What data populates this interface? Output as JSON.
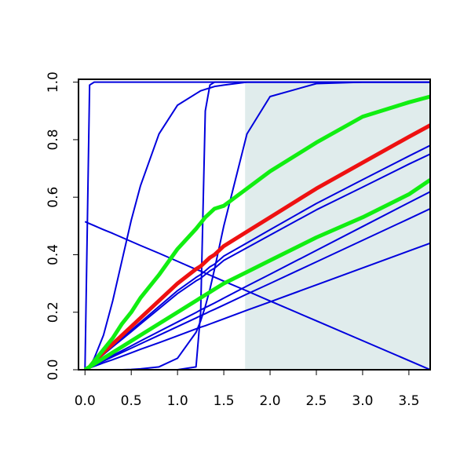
{
  "chart_data": {
    "type": "line",
    "x": [
      0,
      0.05,
      0.1,
      0.2,
      0.3,
      0.4,
      0.5,
      0.6,
      0.8,
      1,
      1.2,
      1.25,
      1.3,
      1.35,
      1.4,
      1.5,
      1.75,
      2,
      2.5,
      3,
      3.5,
      3.73
    ],
    "xlim": [
      -0.07,
      3.73
    ],
    "ylim": [
      0,
      1.01
    ],
    "xticks": [
      {
        "value": 0,
        "label": "0.0"
      },
      {
        "value": 0.5,
        "label": "0.5"
      },
      {
        "value": 1,
        "label": "1.0"
      },
      {
        "value": 1.5,
        "label": "1.5"
      },
      {
        "value": 2,
        "label": "2.0"
      },
      {
        "value": 2.5,
        "label": "2.5"
      },
      {
        "value": 3,
        "label": "3.0"
      },
      {
        "value": 3.5,
        "label": "3.5"
      }
    ],
    "yticks": [
      {
        "value": 0,
        "label": "0.0"
      },
      {
        "value": 0.2,
        "label": "0.2"
      },
      {
        "value": 0.4,
        "label": "0.4"
      },
      {
        "value": 0.6,
        "label": "0.6"
      },
      {
        "value": 0.8,
        "label": "0.8"
      },
      {
        "value": 1,
        "label": "1.0"
      }
    ],
    "shade": {
      "xmin": 1.73,
      "ymin": 0,
      "ymax": 1,
      "color": "#e0ecec"
    },
    "series": [
      {
        "color": "#0000dd",
        "width": 2,
        "values": [
          0,
          0.99,
          1,
          1,
          1,
          1,
          1,
          1,
          1,
          1,
          1,
          1,
          1,
          1,
          1,
          1,
          1,
          1,
          1,
          1,
          1,
          1
        ]
      },
      {
        "color": "#0000dd",
        "width": 2,
        "values": [
          0,
          0.01,
          0.04,
          0.12,
          0.24,
          0.38,
          0.52,
          0.64,
          0.82,
          0.92,
          0.96,
          0.97,
          0.975,
          0.98,
          0.985,
          0.99,
          1,
          1,
          1,
          1,
          1,
          1
        ]
      },
      {
        "color": "#0000dd",
        "width": 2,
        "values": [
          0,
          0,
          0,
          0,
          0,
          0,
          0,
          0,
          0,
          0,
          0.01,
          0.2,
          0.9,
          0.99,
          1,
          1,
          1,
          1,
          1,
          1,
          1,
          1
        ]
      },
      {
        "color": "#0000dd",
        "width": 2,
        "values": [
          0,
          0,
          0,
          0,
          0,
          0,
          0.001,
          0.003,
          0.01,
          0.04,
          0.13,
          0.17,
          0.22,
          0.28,
          0.35,
          0.5,
          0.82,
          0.95,
          0.995,
          1,
          1,
          1
        ]
      },
      {
        "color": "#0000dd",
        "width": 2,
        "values": [
          0,
          0.009,
          0.027,
          0.055,
          0.083,
          0.11,
          0.137,
          0.165,
          0.22,
          0.275,
          0.321,
          0.331,
          0.344,
          0.358,
          0.367,
          0.395,
          0.441,
          0.487,
          0.578,
          0.661,
          0.743,
          0.78
        ]
      },
      {
        "color": "#0000dd",
        "width": 2,
        "values": [
          0,
          0.009,
          0.026,
          0.053,
          0.08,
          0.106,
          0.132,
          0.159,
          0.212,
          0.265,
          0.309,
          0.318,
          0.331,
          0.344,
          0.353,
          0.38,
          0.424,
          0.468,
          0.556,
          0.635,
          0.715,
          0.75
        ]
      },
      {
        "color": "#0000dd",
        "width": 2,
        "values": [
          0,
          0.008,
          0.017,
          0.033,
          0.05,
          0.066,
          0.083,
          0.1,
          0.133,
          0.166,
          0.199,
          0.208,
          0.216,
          0.224,
          0.232,
          0.249,
          0.291,
          0.332,
          0.415,
          0.498,
          0.581,
          0.619
        ]
      },
      {
        "color": "#0000dd",
        "width": 2,
        "values": [
          0,
          0.008,
          0.015,
          0.03,
          0.045,
          0.06,
          0.075,
          0.09,
          0.12,
          0.15,
          0.18,
          0.188,
          0.195,
          0.203,
          0.21,
          0.225,
          0.263,
          0.3,
          0.375,
          0.45,
          0.525,
          0.56
        ]
      },
      {
        "color": "#0000dd",
        "width": 2,
        "values": [
          0,
          0.006,
          0.012,
          0.024,
          0.035,
          0.047,
          0.059,
          0.071,
          0.094,
          0.118,
          0.142,
          0.148,
          0.153,
          0.159,
          0.165,
          0.177,
          0.207,
          0.236,
          0.295,
          0.354,
          0.413,
          0.44
        ]
      },
      {
        "color": "#0000dd",
        "width": 2,
        "values": [
          0.515,
          0.508,
          0.501,
          0.487,
          0.474,
          0.46,
          0.446,
          0.432,
          0.405,
          0.377,
          0.349,
          0.343,
          0.336,
          0.329,
          0.322,
          0.308,
          0.274,
          0.239,
          0.17,
          0.101,
          0.032,
          0
        ]
      },
      {
        "color": "#ee1111",
        "width": 5,
        "values": [
          0,
          0.01,
          0.03,
          0.06,
          0.09,
          0.12,
          0.15,
          0.18,
          0.24,
          0.3,
          0.35,
          0.36,
          0.375,
          0.39,
          0.4,
          0.43,
          0.48,
          0.53,
          0.63,
          0.72,
          0.81,
          0.85
        ]
      },
      {
        "color": "#11ee11",
        "width": 5,
        "values": [
          0,
          0.01,
          0.03,
          0.07,
          0.11,
          0.16,
          0.2,
          0.25,
          0.33,
          0.42,
          0.49,
          0.51,
          0.53,
          0.545,
          0.56,
          0.57,
          0.63,
          0.69,
          0.79,
          0.88,
          0.93,
          0.95
        ]
      },
      {
        "color": "#11ee11",
        "width": 5,
        "values": [
          0,
          0.01,
          0.02,
          0.04,
          0.06,
          0.08,
          0.1,
          0.12,
          0.16,
          0.2,
          0.24,
          0.25,
          0.26,
          0.27,
          0.28,
          0.3,
          0.34,
          0.38,
          0.46,
          0.53,
          0.61,
          0.66
        ]
      }
    ]
  }
}
